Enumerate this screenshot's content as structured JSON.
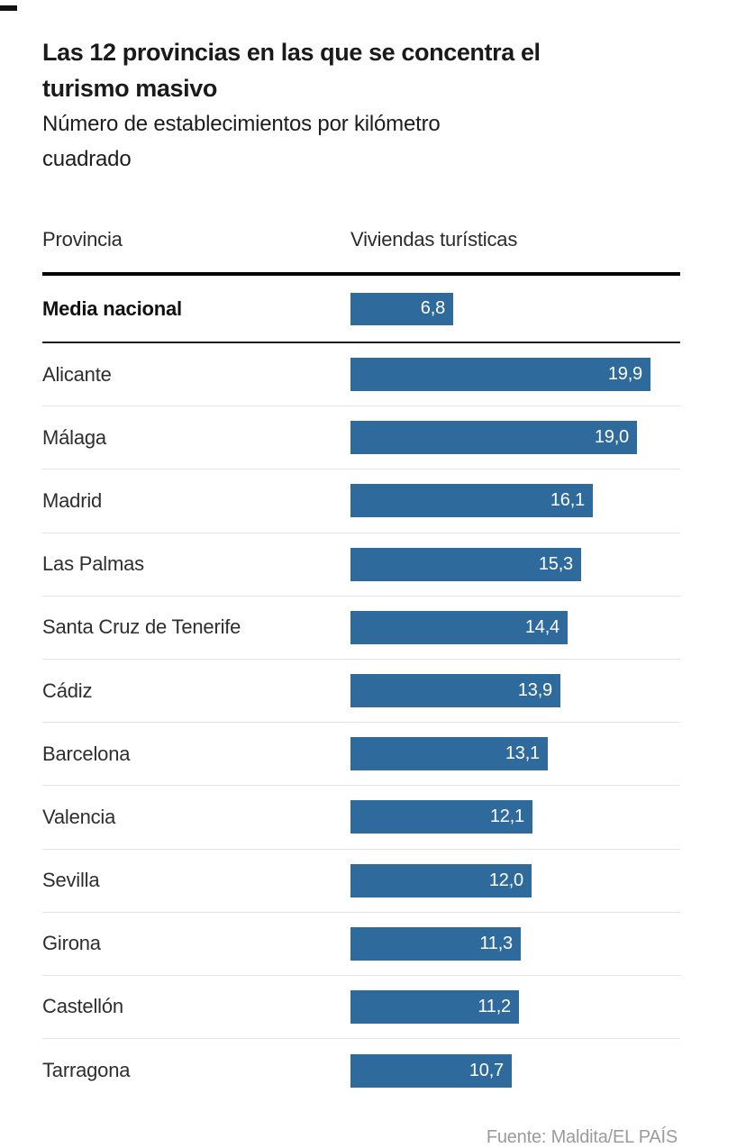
{
  "chart_data": {
    "type": "bar",
    "orientation": "horizontal",
    "title": "Las 12 provincias en las que se concentra el turismo masivo",
    "title_lines": [
      "Las 12 provincias en las que se concentra el",
      "turismo masivo"
    ],
    "subtitle": "Número de establecimientos por kilómetro cuadrado",
    "subtitle_lines": [
      "Número de establecimientos por kilómetro",
      "cuadrado"
    ],
    "column_headers": {
      "category": "Provincia",
      "value": "Viviendas turísticas"
    },
    "reference_row": {
      "label": "Media nacional",
      "value": 6.8,
      "value_label": "6,8"
    },
    "categories": [
      "Alicante",
      "Málaga",
      "Madrid",
      "Las Palmas",
      "Santa Cruz de Tenerife",
      "Cádiz",
      "Barcelona",
      "Valencia",
      "Sevilla",
      "Girona",
      "Castellón",
      "Tarragona"
    ],
    "values": [
      19.9,
      19.0,
      16.1,
      15.3,
      14.4,
      13.9,
      13.1,
      12.1,
      12.0,
      11.3,
      11.2,
      10.7
    ],
    "value_labels": [
      "19,9",
      "19,0",
      "16,1",
      "15,3",
      "14,4",
      "13,9",
      "13,1",
      "12,1",
      "12,0",
      "11,3",
      "11,2",
      "10,7"
    ],
    "xlim": [
      0,
      19.9
    ],
    "grid": false,
    "legend": "none",
    "value_label_position": "inside-right",
    "bar_color": "#2f6a9c",
    "source": "Fuente: Maldita/EL PAÍS"
  }
}
